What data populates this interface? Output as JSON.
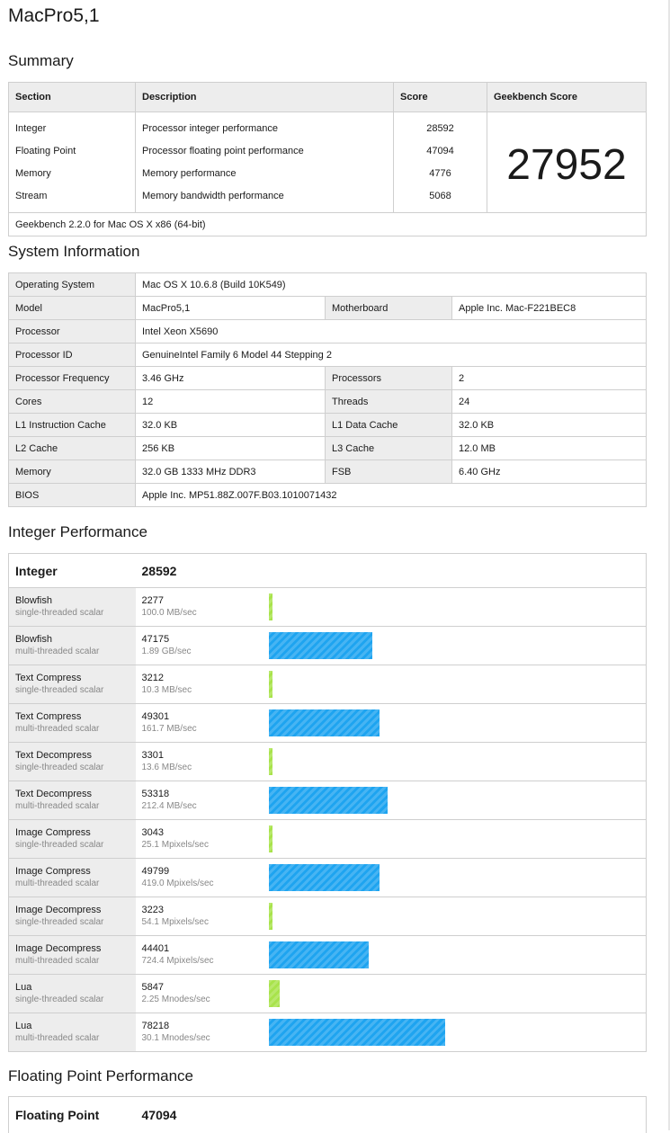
{
  "page": {
    "title": "MacPro5,1"
  },
  "summary": {
    "heading": "Summary",
    "columns": [
      "Section",
      "Description",
      "Score",
      "Geekbench Score"
    ],
    "rows": [
      {
        "section": "Integer",
        "description": "Processor integer performance",
        "score": "28592"
      },
      {
        "section": "Floating Point",
        "description": "Processor floating point performance",
        "score": "47094"
      },
      {
        "section": "Memory",
        "description": "Memory performance",
        "score": "4776"
      },
      {
        "section": "Stream",
        "description": "Memory bandwidth performance",
        "score": "5068"
      }
    ],
    "geekbench_score": "27952",
    "footer": "Geekbench 2.2.0 for Mac OS X x86 (64-bit)"
  },
  "system": {
    "heading": "System Information",
    "os_label": "Operating System",
    "os_value": "Mac OS X 10.6.8 (Build 10K549)",
    "model_label": "Model",
    "model_value": "MacPro5,1",
    "motherboard_label": "Motherboard",
    "motherboard_value": "Apple Inc. Mac-F221BEC8",
    "processor_label": "Processor",
    "processor_value": "Intel Xeon X5690",
    "processor_id_label": "Processor ID",
    "processor_id_value": "GenuineIntel Family 6 Model 44 Stepping 2",
    "freq_label": "Processor Frequency",
    "freq_value": "3.46 GHz",
    "processors_label": "Processors",
    "processors_value": "2",
    "cores_label": "Cores",
    "cores_value": "12",
    "threads_label": "Threads",
    "threads_value": "24",
    "l1i_label": "L1 Instruction Cache",
    "l1i_value": "32.0 KB",
    "l1d_label": "L1 Data Cache",
    "l1d_value": "32.0 KB",
    "l2_label": "L2 Cache",
    "l2_value": "256 KB",
    "l3_label": "L3 Cache",
    "l3_value": "12.0 MB",
    "memory_label": "Memory",
    "memory_value": "32.0 GB 1333 MHz DDR3",
    "fsb_label": "FSB",
    "fsb_value": "6.40 GHz",
    "bios_label": "BIOS",
    "bios_value": "Apple Inc. MP51.88Z.007F.B03.1010071432"
  },
  "integer": {
    "heading": "Integer Performance",
    "title": "Integer",
    "score": "28592",
    "bar_colors": {
      "multi": "#1ea4f0",
      "single": "#a8e34b"
    },
    "benchmarks": [
      {
        "name": "Blowfish",
        "mode": "single-threaded scalar",
        "score": "2277",
        "rate": "100.0 MB/sec",
        "kind": "single",
        "bar_pct": 1.0
      },
      {
        "name": "Blowfish",
        "mode": "multi-threaded scalar",
        "score": "47175",
        "rate": "1.89 GB/sec",
        "kind": "multi",
        "bar_pct": 27.9
      },
      {
        "name": "Text Compress",
        "mode": "single-threaded scalar",
        "score": "3212",
        "rate": "10.3 MB/sec",
        "kind": "single",
        "bar_pct": 1.0
      },
      {
        "name": "Text Compress",
        "mode": "multi-threaded scalar",
        "score": "49301",
        "rate": "161.7 MB/sec",
        "kind": "multi",
        "bar_pct": 29.9
      },
      {
        "name": "Text Decompress",
        "mode": "single-threaded scalar",
        "score": "3301",
        "rate": "13.6 MB/sec",
        "kind": "single",
        "bar_pct": 1.0
      },
      {
        "name": "Text Decompress",
        "mode": "multi-threaded scalar",
        "score": "53318",
        "rate": "212.4 MB/sec",
        "kind": "multi",
        "bar_pct": 32.2
      },
      {
        "name": "Image Compress",
        "mode": "single-threaded scalar",
        "score": "3043",
        "rate": "25.1 Mpixels/sec",
        "kind": "single",
        "bar_pct": 1.0
      },
      {
        "name": "Image Compress",
        "mode": "multi-threaded scalar",
        "score": "49799",
        "rate": "419.0 Mpixels/sec",
        "kind": "multi",
        "bar_pct": 29.9
      },
      {
        "name": "Image Decompress",
        "mode": "single-threaded scalar",
        "score": "3223",
        "rate": "54.1 Mpixels/sec",
        "kind": "single",
        "bar_pct": 1.0
      },
      {
        "name": "Image Decompress",
        "mode": "multi-threaded scalar",
        "score": "44401",
        "rate": "724.4 Mpixels/sec",
        "kind": "multi",
        "bar_pct": 27.0
      },
      {
        "name": "Lua",
        "mode": "single-threaded scalar",
        "score": "5847",
        "rate": "2.25 Mnodes/sec",
        "kind": "single",
        "bar_pct": 3.0
      },
      {
        "name": "Lua",
        "mode": "multi-threaded scalar",
        "score": "78218",
        "rate": "30.1 Mnodes/sec",
        "kind": "multi",
        "bar_pct": 47.6
      }
    ]
  },
  "floating": {
    "heading": "Floating Point Performance",
    "title": "Floating Point",
    "score": "47094"
  }
}
